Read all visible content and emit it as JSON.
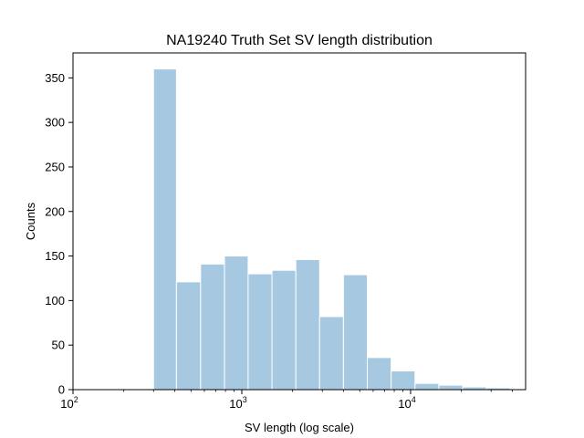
{
  "chart_data": {
    "type": "bar",
    "subtype": "histogram",
    "title": "NA19240 Truth Set SV length distribution",
    "xlabel": "SV length (log scale)",
    "ylabel": "Counts",
    "xscale": "log",
    "xlim": [
      100,
      48000
    ],
    "ylim": [
      0,
      378
    ],
    "x_ticks": [
      {
        "value": 100,
        "base": "10",
        "exp": "2"
      },
      {
        "value": 1000,
        "base": "10",
        "exp": "3"
      },
      {
        "value": 10000,
        "base": "10",
        "exp": "4"
      }
    ],
    "y_ticks": [
      {
        "value": 0,
        "label": "0"
      },
      {
        "value": 50,
        "label": "50"
      },
      {
        "value": 100,
        "label": "100"
      },
      {
        "value": 150,
        "label": "150"
      },
      {
        "value": 200,
        "label": "200"
      },
      {
        "value": 250,
        "label": "250"
      },
      {
        "value": 300,
        "label": "300"
      },
      {
        "value": 350,
        "label": "350"
      }
    ],
    "bin_edges": [
      300,
      410,
      570,
      790,
      1090,
      1510,
      2090,
      2890,
      4000,
      5540,
      7670,
      10620,
      14700,
      20350,
      28170,
      39000,
      48000
    ],
    "values": [
      360,
      121,
      141,
      150,
      130,
      134,
      146,
      82,
      129,
      36,
      21,
      7,
      5,
      3,
      2,
      1
    ],
    "bar_color": "#a6c8e0",
    "bar_edge_color": "#ffffff",
    "grid": false,
    "legend": "none"
  }
}
